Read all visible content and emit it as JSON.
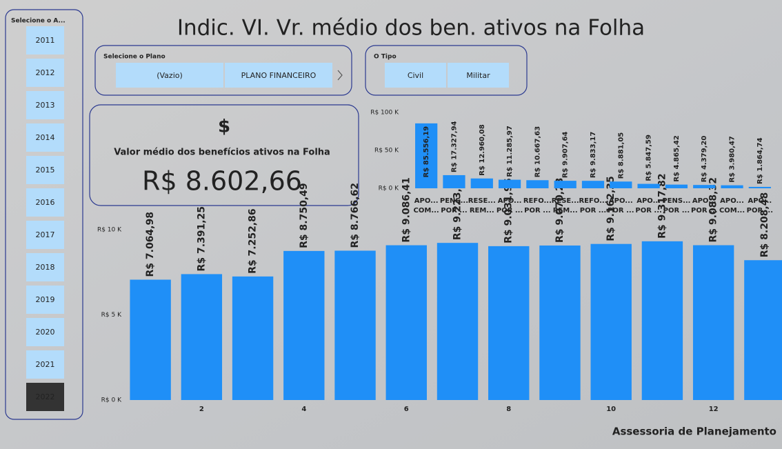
{
  "title": "Indic. VI. Vr. médio dos ben. ativos na Folha",
  "footer": "Assessoria de Planejamento",
  "year_slicer": {
    "title": "Selecione o A...",
    "items": [
      "2011",
      "2012",
      "2013",
      "2014",
      "2015",
      "2016",
      "2017",
      "2018",
      "2019",
      "2020",
      "2021",
      "2022"
    ],
    "selected": "2022"
  },
  "plan_slicer": {
    "title": "Selecione o Plano",
    "items": [
      "(Vazio)",
      "PLANO FINANCEIRO"
    ]
  },
  "type_slicer": {
    "title": "O Tipo",
    "items": [
      "Civil",
      "Militar"
    ]
  },
  "card": {
    "icon": "$",
    "label": "Valor médio dos benefícios ativos na Folha",
    "value": "R$ 8.602,66"
  },
  "chart_data": [
    {
      "type": "bar",
      "color": "#1f8ff7",
      "categories": [
        null,
        2,
        null,
        4,
        null,
        6,
        null,
        8,
        null,
        10,
        null,
        12,
        null
      ],
      "values": [
        7064.98,
        7391.25,
        7252.86,
        8750.49,
        8766.62,
        9086.41,
        9223.85,
        9031.96,
        9070.23,
        9162.35,
        9317.82,
        9088.32,
        8208.48
      ],
      "value_labels": [
        "R$ 7.064,98",
        "R$ 7.391,25",
        "R$ 7.252,86",
        "R$ 8.750,49",
        "R$ 8.766,62",
        "R$ 9.086,41",
        "R$ 9.223,85",
        "R$ 9.031,96",
        "R$ 9.070,23",
        "R$ 9.162,35",
        "R$ 9.317,82",
        "R$ 9.088,32",
        "R$ 8.208,48"
      ],
      "ylim": [
        0,
        10000
      ],
      "yticks": [
        {
          "value": 0,
          "label": "R$ 0 K"
        },
        {
          "value": 5000,
          "label": "R$ 5 K"
        },
        {
          "value": 10000,
          "label": "R$ 10 K"
        }
      ]
    },
    {
      "type": "bar",
      "color": "#1f8ff7",
      "categories": [
        [
          "APO...",
          "COM..."
        ],
        [
          "PENS...",
          "POR ..."
        ],
        [
          "RESE...",
          "REM..."
        ],
        [
          "APO...",
          "POR ..."
        ],
        [
          "REFO...",
          "POR ..."
        ],
        [
          "RESE...",
          "REM..."
        ],
        [
          "REFO...",
          "POR ..."
        ],
        [
          "APO...",
          "POR ..."
        ],
        [
          "APO...",
          "POR ..."
        ],
        [
          "PENS...",
          "POR ..."
        ],
        [
          "APO...",
          "POR ..."
        ],
        [
          "APO...",
          "COM..."
        ],
        [
          "APO...",
          "POR ..."
        ]
      ],
      "values": [
        85556.19,
        17327.94,
        12960.08,
        11285.97,
        10667.63,
        9907.64,
        9833.17,
        8881.05,
        5847.59,
        4865.42,
        4379.2,
        3980.47,
        1864.74
      ],
      "value_labels": [
        "R$ 85.556,19",
        "R$ 17.327,94",
        "R$ 12.960,08",
        "R$ 11.285,97",
        "R$ 10.667,63",
        "R$ 9.907,64",
        "R$ 9.833,17",
        "R$ 8.881,05",
        "R$ 5.847,59",
        "R$ 4.865,42",
        "R$ 4.379,20",
        "R$ 3.980,47",
        "R$ 1.864,74"
      ],
      "ylim": [
        0,
        100000
      ],
      "yticks": [
        {
          "value": 0,
          "label": "R$ 0 K"
        },
        {
          "value": 50000,
          "label": "R$ 50 K"
        },
        {
          "value": 100000,
          "label": "R$ 100 K"
        }
      ]
    }
  ]
}
